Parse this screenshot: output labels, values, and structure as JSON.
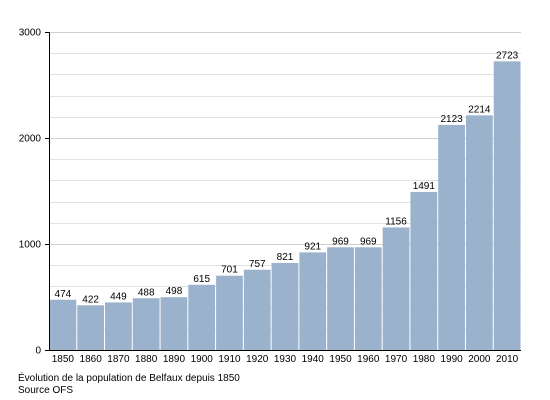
{
  "chart_data": {
    "type": "bar",
    "categories": [
      "1850",
      "1860",
      "1870",
      "1880",
      "1890",
      "1900",
      "1910",
      "1920",
      "1930",
      "1940",
      "1950",
      "1960",
      "1970",
      "1980",
      "1990",
      "2000",
      "2010"
    ],
    "values": [
      474,
      422,
      449,
      488,
      498,
      615,
      701,
      757,
      821,
      921,
      969,
      969,
      1156,
      1491,
      2123,
      2214,
      2723
    ],
    "data_labels": [
      "474",
      "422",
      "449",
      "488",
      "498",
      "615",
      "701",
      "757",
      "821",
      "921",
      "969",
      "969",
      "1156",
      "1491",
      "2123",
      "2214",
      "2723"
    ],
    "y_ticks": [
      "0",
      "1000",
      "2000",
      "3000"
    ],
    "ylim": [
      0,
      3000
    ],
    "grid": true,
    "title": "",
    "xlabel": "",
    "ylabel": "",
    "bar_color": "#9bb2cc",
    "grid_color": "#e2e2e2",
    "axis_color": "#000000",
    "caption": [
      "Évolution de la population de Belfaux depuis 1850",
      "Source OFS"
    ]
  }
}
